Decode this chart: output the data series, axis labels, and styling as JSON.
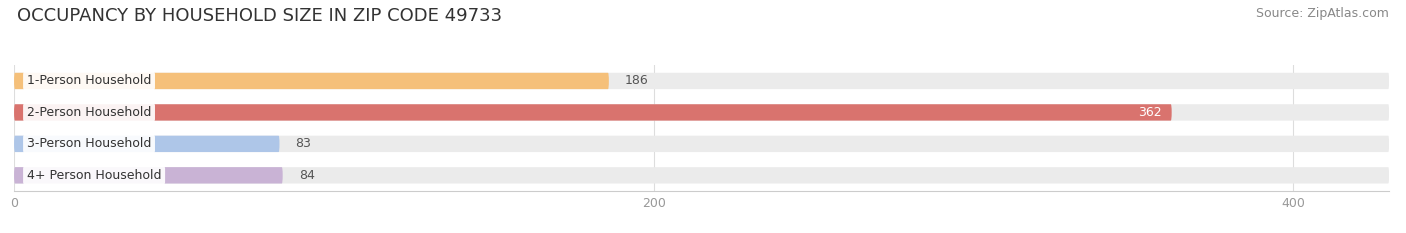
{
  "title": "OCCUPANCY BY HOUSEHOLD SIZE IN ZIP CODE 49733",
  "source": "Source: ZipAtlas.com",
  "categories": [
    "1-Person Household",
    "2-Person Household",
    "3-Person Household",
    "4+ Person Household"
  ],
  "values": [
    186,
    362,
    83,
    84
  ],
  "bar_colors": [
    "#f5c07a",
    "#d9736e",
    "#aec6e8",
    "#c9b3d5"
  ],
  "bar_label_colors": [
    "#333333",
    "#ffffff",
    "#333333",
    "#333333"
  ],
  "background_color": "#ffffff",
  "bar_bg_color": "#ebebeb",
  "xlim_max": 430,
  "xticks": [
    0,
    200,
    400
  ],
  "title_fontsize": 13,
  "source_fontsize": 9,
  "label_fontsize": 9,
  "value_fontsize": 9,
  "bar_height": 0.52,
  "figsize": [
    14.06,
    2.33
  ],
  "dpi": 100
}
